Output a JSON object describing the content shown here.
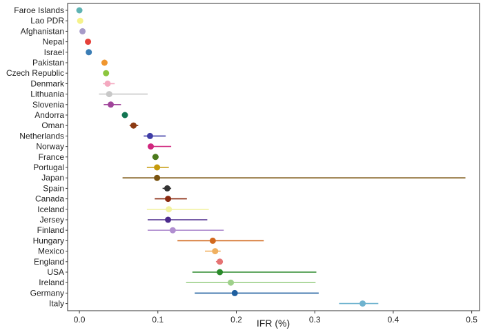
{
  "chart_data": {
    "type": "scatter",
    "title": "",
    "xlabel": "IFR (%)",
    "ylabel": "",
    "xlim": [
      -0.015,
      0.51
    ],
    "xticks": [
      0.0,
      0.1,
      0.2,
      0.3,
      0.4,
      0.5
    ],
    "xtick_labels": [
      "0.0",
      "0.1",
      "0.2",
      "0.3",
      "0.4",
      "0.5"
    ],
    "grid": false,
    "legend": "none",
    "points": [
      {
        "country": "Faroe Islands",
        "ifr": 0.0,
        "low": null,
        "high": null,
        "color": "#5fb3b3"
      },
      {
        "country": "Lao PDR",
        "ifr": 0.001,
        "low": null,
        "high": null,
        "color": "#f5f28a"
      },
      {
        "country": "Afghanistan",
        "ifr": 0.004,
        "low": null,
        "high": null,
        "color": "#a79bc8"
      },
      {
        "country": "Nepal",
        "ifr": 0.011,
        "low": null,
        "high": null,
        "color": "#e5413a"
      },
      {
        "country": "Israel",
        "ifr": 0.012,
        "low": null,
        "high": null,
        "color": "#3b7db5"
      },
      {
        "country": "Pakistan",
        "ifr": 0.032,
        "low": null,
        "high": null,
        "color": "#f0962e"
      },
      {
        "country": "Czech Republic",
        "ifr": 0.034,
        "low": null,
        "high": null,
        "color": "#8cc63f"
      },
      {
        "country": "Denmark",
        "ifr": 0.036,
        "low": 0.03,
        "high": 0.045,
        "color": "#f4a9c0"
      },
      {
        "country": "Lithuania",
        "ifr": 0.038,
        "low": 0.025,
        "high": 0.087,
        "color": "#c8c8c8"
      },
      {
        "country": "Slovenia",
        "ifr": 0.04,
        "low": 0.031,
        "high": 0.053,
        "color": "#a0449a"
      },
      {
        "country": "Andorra",
        "ifr": 0.058,
        "low": null,
        "high": null,
        "color": "#127552"
      },
      {
        "country": "Oman",
        "ifr": 0.069,
        "low": 0.064,
        "high": 0.075,
        "color": "#8c3a12"
      },
      {
        "country": "Netherlands",
        "ifr": 0.09,
        "low": 0.082,
        "high": 0.11,
        "color": "#3f3ca6"
      },
      {
        "country": "Norway",
        "ifr": 0.091,
        "low": 0.087,
        "high": 0.117,
        "color": "#d0277e"
      },
      {
        "country": "France",
        "ifr": 0.097,
        "low": 0.093,
        "high": 0.101,
        "color": "#4b7a1c"
      },
      {
        "country": "Portugal",
        "ifr": 0.099,
        "low": 0.086,
        "high": 0.114,
        "color": "#c69a0c"
      },
      {
        "country": "Japan",
        "ifr": 0.099,
        "low": 0.055,
        "high": 0.492,
        "color": "#7a5410"
      },
      {
        "country": "Spain",
        "ifr": 0.112,
        "low": 0.106,
        "high": 0.117,
        "color": "#333333"
      },
      {
        "country": "Canada",
        "ifr": 0.113,
        "low": 0.096,
        "high": 0.137,
        "color": "#8a2a10"
      },
      {
        "country": "Iceland",
        "ifr": 0.114,
        "low": 0.086,
        "high": 0.165,
        "color": "#f2f2a0"
      },
      {
        "country": "Jersey",
        "ifr": 0.113,
        "low": 0.087,
        "high": 0.163,
        "color": "#4b2a8c"
      },
      {
        "country": "Finland",
        "ifr": 0.119,
        "low": 0.087,
        "high": 0.184,
        "color": "#b08ed0"
      },
      {
        "country": "Hungary",
        "ifr": 0.17,
        "low": 0.125,
        "high": 0.235,
        "color": "#d2691e"
      },
      {
        "country": "Mexico",
        "ifr": 0.173,
        "low": 0.16,
        "high": 0.18,
        "color": "#f0b060"
      },
      {
        "country": "England",
        "ifr": 0.179,
        "low": 0.174,
        "high": 0.182,
        "color": "#e57373"
      },
      {
        "country": "USA",
        "ifr": 0.179,
        "low": 0.144,
        "high": 0.302,
        "color": "#2b8a2b"
      },
      {
        "country": "Ireland",
        "ifr": 0.193,
        "low": 0.136,
        "high": 0.301,
        "color": "#9ed08a"
      },
      {
        "country": "Germany",
        "ifr": 0.198,
        "low": 0.147,
        "high": 0.305,
        "color": "#1f5f9f"
      },
      {
        "country": "Italy",
        "ifr": 0.361,
        "low": 0.331,
        "high": 0.381,
        "color": "#6fb3cf"
      }
    ]
  }
}
